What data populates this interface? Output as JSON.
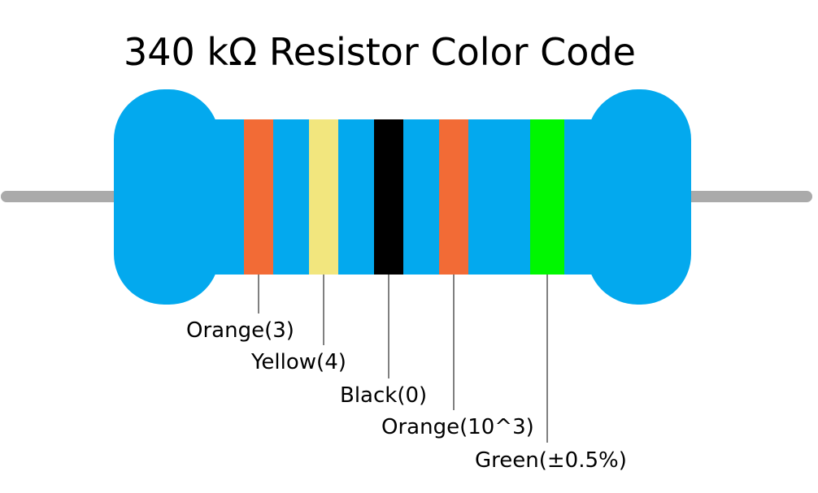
{
  "title": "340 kΩ Resistor Color Code",
  "colors": {
    "body": "#03A9EE",
    "lead": "#AAAAAA",
    "background": "#FFFFFF"
  },
  "bands": [
    {
      "name": "orange",
      "color": "#F26B36",
      "label": "Orange(3)"
    },
    {
      "name": "yellow",
      "color": "#F2E67E",
      "label": "Yellow(4)"
    },
    {
      "name": "black",
      "color": "#000000",
      "label": "Black(0)"
    },
    {
      "name": "orange-multiplier",
      "color": "#F26B36",
      "label": "Orange(10^3)"
    },
    {
      "name": "green",
      "color": "#00F700",
      "label": "Green(±0.5%)"
    }
  ]
}
